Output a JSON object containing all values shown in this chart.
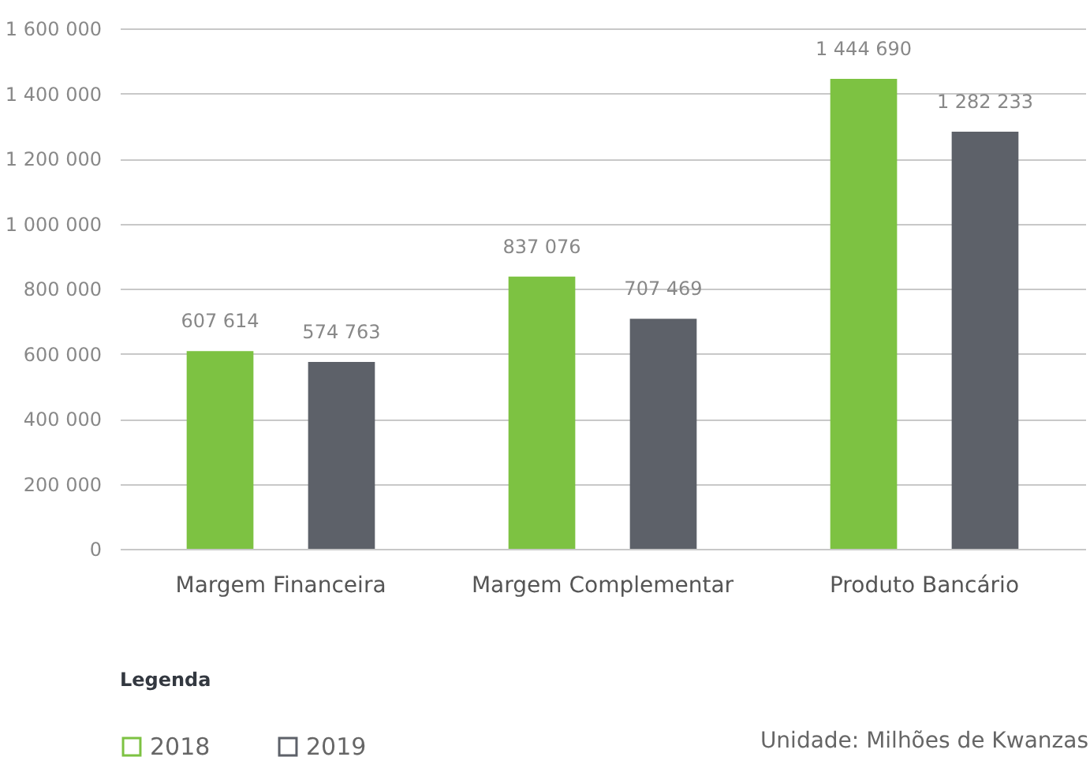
{
  "chart_data": {
    "type": "bar",
    "categories": [
      "Margem Financeira",
      "Margem Complementar",
      "Produto Bancário"
    ],
    "series": [
      {
        "name": "2018",
        "color": "#7dc242",
        "values": [
          607614,
          837076,
          1444690
        ]
      },
      {
        "name": "2019",
        "color": "#5d6169",
        "values": [
          574763,
          707469,
          1282233
        ]
      }
    ],
    "ylim": [
      0,
      1600000
    ],
    "yticks": [
      {
        "value": 0,
        "label": "0"
      },
      {
        "value": 200000,
        "label": "200 000"
      },
      {
        "value": 400000,
        "label": "400 000"
      },
      {
        "value": 600000,
        "label": "600 000"
      },
      {
        "value": 800000,
        "label": "800 000"
      },
      {
        "value": 1000000,
        "label": "1 000 000"
      },
      {
        "value": 1200000,
        "label": "1 200 000"
      },
      {
        "value": 1400000,
        "label": "1 400 000"
      },
      {
        "value": 1600000,
        "label": "1 600 000"
      }
    ],
    "value_labels": [
      [
        "607 614",
        "837 076",
        "1 444 690"
      ],
      [
        "574 763",
        "707 469",
        "1 282 233"
      ]
    ],
    "grid": "y",
    "legend": "bottom left",
    "legend_title": "Legenda",
    "annotations": [
      "Unidade: Milhões de Kwanzas"
    ]
  }
}
